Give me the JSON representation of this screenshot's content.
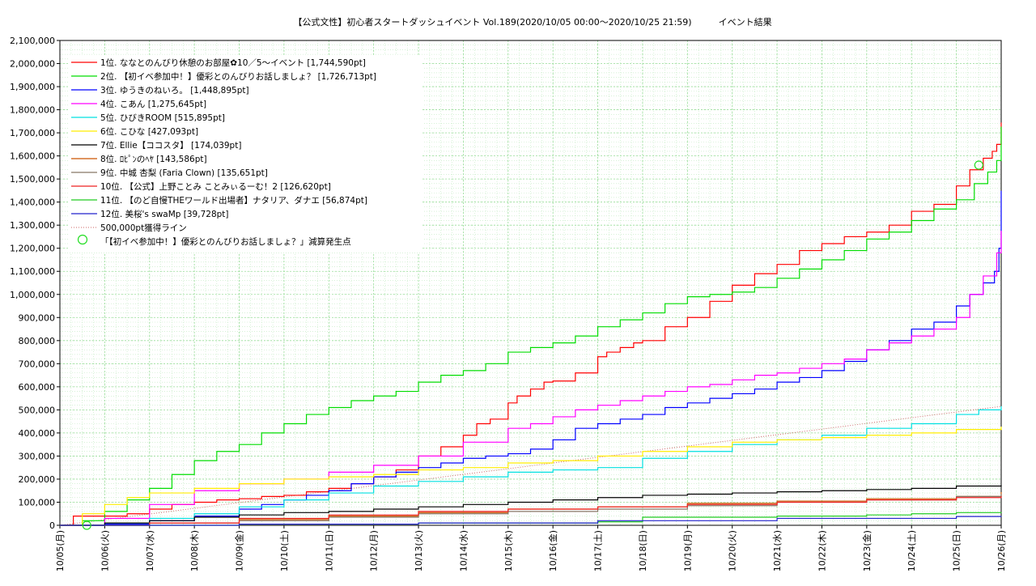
{
  "chart_data": {
    "type": "line",
    "title": "【公式文性】初心者スタートダッシュイベント Vol.189(2020/10/05 00:00〜2020/10/25 21:59)　　　イベント結果",
    "ylim": [
      0,
      2100000
    ],
    "y_ticks": [
      "0",
      "100,000",
      "200,000",
      "300,000",
      "400,000",
      "500,000",
      "600,000",
      "700,000",
      "800,000",
      "900,000",
      "1,000,000",
      "1,100,000",
      "1,200,000",
      "1,300,000",
      "1,400,000",
      "1,500,000",
      "1,600,000",
      "1,700,000",
      "1,800,000",
      "1,900,000",
      "2,000,000",
      "2,100,000"
    ],
    "x_ticks": [
      "10/05(月)",
      "10/06(火)",
      "10/07(水)",
      "10/08(木)",
      "10/09(金)",
      "10/10(土)",
      "10/11(日)",
      "10/12(月)",
      "10/13(火)",
      "10/14(水)",
      "10/15(木)",
      "10/16(金)",
      "10/17(土)",
      "10/18(日)",
      "10/19(月)",
      "10/20(火)",
      "10/21(水)",
      "10/22(木)",
      "10/23(金)",
      "10/24(土)",
      "10/25(日)",
      "10/26(月)"
    ],
    "xlim_days": [
      0,
      21
    ],
    "grid": true,
    "legend_position": "top-left",
    "series": [
      {
        "name": "1位. ななとのんびり休憩のお部屋✿10／5〜イベント [1,744,590pt]",
        "color": "#ff0000",
        "x": [
          0,
          0.3,
          1,
          1.5,
          2,
          2.5,
          3,
          3.5,
          4,
          4.5,
          5,
          5.5,
          6,
          6.5,
          7,
          7.5,
          8,
          8.5,
          9,
          9.3,
          9.6,
          10,
          10.2,
          10.5,
          10.8,
          11,
          11.5,
          12,
          12.2,
          12.5,
          12.8,
          13,
          13.5,
          14,
          14.5,
          15,
          15.5,
          16,
          16.5,
          17,
          17.5,
          18,
          18.5,
          19,
          19.5,
          20,
          20.3,
          20.6,
          20.8,
          20.9,
          21
        ],
        "values": [
          0,
          40000,
          40000,
          50000,
          70000,
          90000,
          100000,
          110000,
          115000,
          125000,
          130000,
          145000,
          160000,
          180000,
          210000,
          240000,
          300000,
          340000,
          390000,
          440000,
          460000,
          530000,
          560000,
          590000,
          620000,
          625000,
          660000,
          730000,
          750000,
          770000,
          790000,
          800000,
          860000,
          900000,
          970000,
          1040000,
          1090000,
          1130000,
          1190000,
          1220000,
          1250000,
          1270000,
          1300000,
          1360000,
          1390000,
          1470000,
          1540000,
          1590000,
          1620000,
          1650000,
          1744590
        ]
      },
      {
        "name": "2位. 【初イベ参加中！】優彩とのんびりお話しましょ？ [1,726,713pt]",
        "color": "#00dd00",
        "x": [
          0,
          0.5,
          1,
          1.5,
          2,
          2.5,
          3,
          3.5,
          4,
          4.5,
          5,
          5.5,
          6,
          6.5,
          7,
          7.5,
          8,
          8.5,
          9,
          9.5,
          10,
          10.5,
          11,
          11.5,
          12,
          12.5,
          13,
          13.5,
          14,
          14.5,
          15,
          15.5,
          16,
          16.5,
          17,
          17.5,
          18,
          18.5,
          19,
          19.5,
          20,
          20.4,
          20.7,
          20.9,
          21
        ],
        "values": [
          0,
          20000,
          60000,
          110000,
          160000,
          220000,
          280000,
          320000,
          350000,
          400000,
          440000,
          480000,
          510000,
          540000,
          560000,
          580000,
          620000,
          650000,
          670000,
          700000,
          750000,
          770000,
          790000,
          820000,
          860000,
          890000,
          920000,
          960000,
          990000,
          1000000,
          1010000,
          1030000,
          1070000,
          1110000,
          1150000,
          1190000,
          1240000,
          1270000,
          1320000,
          1370000,
          1410000,
          1480000,
          1530000,
          1580000,
          1726713
        ]
      },
      {
        "name": "3位. ゆうきのねいろ。 [1,448,895pt]",
        "color": "#0000ff",
        "x": [
          0,
          1,
          2,
          3,
          4,
          4.5,
          5,
          5.5,
          6,
          6.5,
          7,
          7.5,
          8,
          8.5,
          9,
          9.5,
          10,
          10.5,
          11,
          11.5,
          12,
          12.5,
          13,
          13.5,
          14,
          14.5,
          15,
          15.5,
          16,
          16.5,
          17,
          17.5,
          18,
          18.5,
          19,
          19.5,
          20,
          20.3,
          20.6,
          20.85,
          20.95,
          21
        ],
        "values": [
          0,
          5000,
          20000,
          40000,
          70000,
          90000,
          110000,
          130000,
          150000,
          180000,
          210000,
          230000,
          250000,
          270000,
          290000,
          300000,
          310000,
          330000,
          370000,
          420000,
          440000,
          460000,
          480000,
          510000,
          530000,
          550000,
          570000,
          590000,
          620000,
          640000,
          670000,
          710000,
          760000,
          800000,
          850000,
          880000,
          950000,
          1000000,
          1050000,
          1100000,
          1200000,
          1448895
        ]
      },
      {
        "name": "4位. こあん [1,275,645pt]",
        "color": "#ff00ff",
        "x": [
          0,
          1,
          2,
          3,
          4,
          5,
          6,
          7,
          8,
          9,
          10,
          10.5,
          11,
          11.5,
          12,
          12.5,
          13,
          13.5,
          14,
          14.5,
          15,
          15.5,
          16,
          16.5,
          17,
          17.5,
          18,
          18.5,
          19,
          19.5,
          20,
          20.3,
          20.6,
          20.9,
          21
        ],
        "values": [
          0,
          30000,
          90000,
          150000,
          180000,
          200000,
          230000,
          260000,
          300000,
          360000,
          420000,
          440000,
          470000,
          500000,
          520000,
          540000,
          560000,
          580000,
          600000,
          610000,
          630000,
          650000,
          660000,
          680000,
          700000,
          720000,
          760000,
          790000,
          820000,
          850000,
          900000,
          1000000,
          1080000,
          1180000,
          1275645
        ]
      },
      {
        "name": "5位. ひびきROOM [515,895pt]",
        "color": "#00e0e0",
        "x": [
          0,
          1,
          2,
          3,
          4,
          5,
          6,
          7,
          8,
          9,
          10,
          11,
          12,
          13,
          14,
          15,
          16,
          17,
          18,
          19,
          20,
          20.5,
          21
        ],
        "values": [
          0,
          10000,
          30000,
          50000,
          80000,
          110000,
          140000,
          170000,
          190000,
          210000,
          230000,
          240000,
          250000,
          290000,
          320000,
          350000,
          370000,
          390000,
          420000,
          440000,
          480000,
          500000,
          515895
        ]
      },
      {
        "name": "6位. こひな [427,093pt]",
        "color": "#ffee00",
        "x": [
          0,
          0.5,
          1,
          1.5,
          2,
          3,
          4,
          5,
          6,
          7,
          8,
          9,
          10,
          11,
          12,
          13,
          14,
          15,
          16,
          17,
          18,
          19,
          20,
          21
        ],
        "values": [
          0,
          50000,
          90000,
          120000,
          140000,
          160000,
          180000,
          200000,
          210000,
          220000,
          240000,
          250000,
          270000,
          280000,
          300000,
          320000,
          340000,
          360000,
          370000,
          380000,
          390000,
          400000,
          415000,
          427093
        ]
      },
      {
        "name": "7位. Ellie【ココスタ】 [174,039pt]",
        "color": "#000000",
        "x": [
          0,
          1,
          2,
          3,
          4,
          5,
          6,
          7,
          8,
          9,
          10,
          11,
          12,
          13,
          14,
          15,
          16,
          17,
          18,
          19,
          20,
          21
        ],
        "values": [
          0,
          10000,
          20000,
          35000,
          45000,
          55000,
          60000,
          70000,
          80000,
          90000,
          100000,
          110000,
          120000,
          130000,
          135000,
          140000,
          145000,
          150000,
          155000,
          160000,
          170000,
          174039
        ]
      },
      {
        "name": "8位. ﾛﾋﾟﾝのﾍﾔ [143,586pt]",
        "color": "#cc5500",
        "x": [
          0,
          2,
          4,
          6,
          8,
          10,
          12,
          14,
          16,
          18,
          20,
          21
        ],
        "values": [
          0,
          10000,
          25000,
          40000,
          55000,
          70000,
          80000,
          95000,
          105000,
          115000,
          125000,
          143586
        ]
      },
      {
        "name": "9位. 中城 杏梨 (Faria Clown) [135,651pt]",
        "color": "#887766",
        "x": [
          0,
          2,
          4,
          6,
          8,
          10,
          12,
          14,
          16,
          18,
          20,
          21
        ],
        "values": [
          0,
          10000,
          20000,
          35000,
          50000,
          60000,
          70000,
          85000,
          100000,
          110000,
          125000,
          135651
        ]
      },
      {
        "name": "10位. 【公式】上野ことみ ことみぃるーむ！2 [126,620pt]",
        "color": "#ee2222",
        "x": [
          0,
          2,
          4,
          6,
          8,
          10,
          12,
          14,
          16,
          18,
          20,
          21
        ],
        "values": [
          0,
          10000,
          30000,
          45000,
          60000,
          70000,
          80000,
          90000,
          100000,
          110000,
          120000,
          126620
        ]
      },
      {
        "name": "11位. 【のど自慢THEワールド出場者】ナタリア、ダナエ [56,874pt]",
        "color": "#22cc22",
        "x": [
          0,
          4,
          8,
          12,
          13,
          16,
          18,
          19,
          20,
          21
        ],
        "values": [
          0,
          5000,
          10000,
          15000,
          35000,
          40000,
          45000,
          50000,
          55000,
          56874
        ]
      },
      {
        "name": "12位. 美桜's swaMp [39,728pt]",
        "color": "#2222cc",
        "x": [
          0,
          4,
          8,
          12,
          16,
          20,
          21
        ],
        "values": [
          0,
          5000,
          10000,
          20000,
          30000,
          38000,
          39728
        ]
      }
    ],
    "reference_line": {
      "name": "500,000pt獲得ライン",
      "color": "#cc6666",
      "x": [
        0,
        21
      ],
      "values": [
        0,
        515000
      ]
    },
    "markers": {
      "name": "「【初イベ参加中！】優彩とのんびりお話しましょ？」減算発生点",
      "color": "#22dd22",
      "points": [
        {
          "x": 0.6,
          "y": 0
        },
        {
          "x": 20.5,
          "y": 1560000
        }
      ]
    }
  }
}
